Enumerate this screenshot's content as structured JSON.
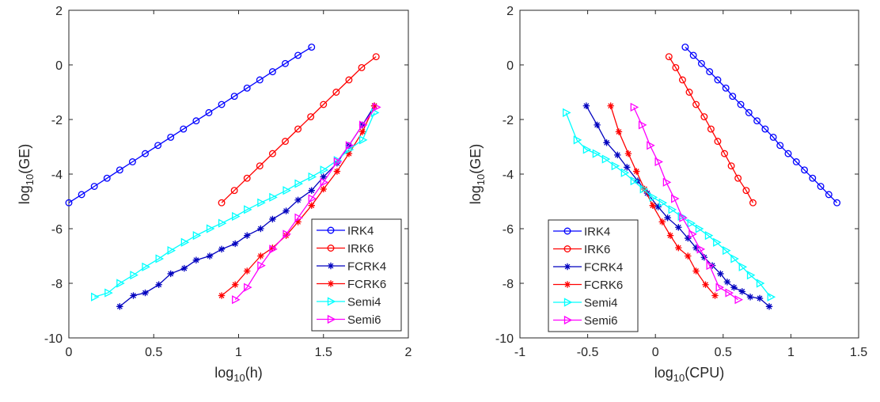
{
  "chart_data": [
    {
      "type": "line",
      "xlabel": "log10(h)",
      "ylabel": "log10(GE)",
      "xlim": [
        0,
        2
      ],
      "ylim": [
        -10,
        2
      ],
      "xticks": [
        0,
        0.5,
        1,
        1.5,
        2
      ],
      "xtick_labels": [
        "0",
        "0.5",
        "1",
        "1.5",
        "2"
      ],
      "yticks": [
        -10,
        -8,
        -6,
        -4,
        -2,
        0,
        2
      ],
      "ytick_labels": [
        "-10",
        "-8",
        "-6",
        "-4",
        "-2",
        "0",
        "2"
      ],
      "grid": false,
      "legend_position": "lower-right",
      "series": [
        {
          "name": "IRK4",
          "color": "#0000ff",
          "marker": "circle",
          "x": [
            0.0,
            0.075,
            0.15,
            0.225,
            0.3,
            0.375,
            0.45,
            0.525,
            0.6,
            0.675,
            0.75,
            0.825,
            0.9,
            0.975,
            1.05,
            1.125,
            1.2,
            1.275,
            1.35,
            1.43
          ],
          "y": [
            -5.05,
            -4.75,
            -4.45,
            -4.15,
            -3.85,
            -3.55,
            -3.25,
            -2.95,
            -2.65,
            -2.35,
            -2.05,
            -1.75,
            -1.45,
            -1.15,
            -0.85,
            -0.55,
            -0.25,
            0.05,
            0.35,
            0.65
          ]
        },
        {
          "name": "IRK6",
          "color": "#ff0000",
          "marker": "circle",
          "x": [
            0.9,
            0.975,
            1.05,
            1.125,
            1.2,
            1.275,
            1.35,
            1.425,
            1.5,
            1.575,
            1.65,
            1.725,
            1.81
          ],
          "y": [
            -5.05,
            -4.6,
            -4.15,
            -3.7,
            -3.25,
            -2.8,
            -2.35,
            -1.9,
            -1.45,
            -1.0,
            -0.55,
            -0.1,
            0.3
          ]
        },
        {
          "name": "FCRK4",
          "color": "#0000bf",
          "marker": "star",
          "x": [
            0.3,
            0.38,
            0.45,
            0.53,
            0.6,
            0.68,
            0.75,
            0.83,
            0.9,
            0.98,
            1.05,
            1.13,
            1.2,
            1.28,
            1.35,
            1.43,
            1.5,
            1.58,
            1.65,
            1.73,
            1.8
          ],
          "y": [
            -8.85,
            -8.45,
            -8.35,
            -8.05,
            -7.65,
            -7.45,
            -7.15,
            -7.0,
            -6.75,
            -6.55,
            -6.25,
            -6.0,
            -5.65,
            -5.35,
            -4.95,
            -4.6,
            -4.1,
            -3.6,
            -2.95,
            -2.2,
            -1.5
          ]
        },
        {
          "name": "FCRK6",
          "color": "#ff0000",
          "marker": "star",
          "x": [
            0.9,
            0.98,
            1.05,
            1.13,
            1.2,
            1.28,
            1.35,
            1.43,
            1.5,
            1.58,
            1.65,
            1.73,
            1.8
          ],
          "y": [
            -8.45,
            -8.05,
            -7.55,
            -7.0,
            -6.7,
            -6.25,
            -5.75,
            -5.15,
            -4.55,
            -3.9,
            -3.25,
            -2.45,
            -1.5
          ]
        },
        {
          "name": "Semi4",
          "color": "#00ffff",
          "marker": "triangle-right",
          "x": [
            0.15,
            0.23,
            0.3,
            0.38,
            0.45,
            0.53,
            0.6,
            0.68,
            0.75,
            0.83,
            0.9,
            0.98,
            1.05,
            1.13,
            1.2,
            1.28,
            1.35,
            1.43,
            1.5,
            1.58,
            1.65,
            1.73,
            1.8
          ],
          "y": [
            -8.5,
            -8.35,
            -8.0,
            -7.7,
            -7.4,
            -7.1,
            -6.8,
            -6.5,
            -6.25,
            -6.0,
            -5.8,
            -5.55,
            -5.3,
            -5.05,
            -4.85,
            -4.6,
            -4.35,
            -4.1,
            -3.85,
            -3.5,
            -3.1,
            -2.75,
            -1.75
          ]
        },
        {
          "name": "Semi6",
          "color": "#ff00ff",
          "marker": "triangle-right",
          "x": [
            0.98,
            1.05,
            1.13,
            1.2,
            1.28,
            1.35,
            1.43,
            1.5,
            1.58,
            1.65,
            1.73,
            1.81
          ],
          "y": [
            -8.6,
            -8.15,
            -7.35,
            -6.75,
            -6.2,
            -5.6,
            -4.9,
            -4.3,
            -3.55,
            -2.95,
            -2.2,
            -1.55
          ]
        }
      ]
    },
    {
      "type": "line",
      "xlabel": "log10(CPU)",
      "ylabel": "log10(GE)",
      "xlim": [
        -1,
        1.5
      ],
      "ylim": [
        -10,
        2
      ],
      "xticks": [
        -1,
        -0.5,
        0,
        0.5,
        1,
        1.5
      ],
      "xtick_labels": [
        "-1",
        "-0.5",
        "0",
        "0.5",
        "1",
        "1.5"
      ],
      "yticks": [
        -10,
        -8,
        -6,
        -4,
        -2,
        0,
        2
      ],
      "ytick_labels": [
        "-10",
        "-8",
        "-6",
        "-4",
        "-2",
        "0",
        "2"
      ],
      "grid": false,
      "legend_position": "lower-left",
      "series": [
        {
          "name": "IRK4",
          "color": "#0000ff",
          "marker": "circle",
          "x": [
            0.22,
            0.28,
            0.34,
            0.4,
            0.46,
            0.52,
            0.57,
            0.63,
            0.69,
            0.75,
            0.81,
            0.87,
            0.92,
            0.98,
            1.04,
            1.1,
            1.16,
            1.22,
            1.28,
            1.34
          ],
          "y": [
            0.65,
            0.35,
            0.05,
            -0.25,
            -0.55,
            -0.85,
            -1.15,
            -1.45,
            -1.75,
            -2.05,
            -2.35,
            -2.65,
            -2.95,
            -3.25,
            -3.55,
            -3.85,
            -4.15,
            -4.45,
            -4.75,
            -5.05
          ]
        },
        {
          "name": "IRK6",
          "color": "#ff0000",
          "marker": "circle",
          "x": [
            0.1,
            0.15,
            0.2,
            0.25,
            0.3,
            0.36,
            0.41,
            0.46,
            0.51,
            0.56,
            0.61,
            0.67,
            0.72
          ],
          "y": [
            0.3,
            -0.1,
            -0.55,
            -1.0,
            -1.45,
            -1.9,
            -2.35,
            -2.8,
            -3.25,
            -3.7,
            -4.15,
            -4.6,
            -5.05
          ]
        },
        {
          "name": "FCRK4",
          "color": "#0000bf",
          "marker": "star",
          "x": [
            -0.51,
            -0.43,
            -0.36,
            -0.28,
            -0.21,
            -0.13,
            -0.06,
            0.02,
            0.09,
            0.17,
            0.24,
            0.3,
            0.36,
            0.42,
            0.48,
            0.53,
            0.58,
            0.64,
            0.7,
            0.77,
            0.84
          ],
          "y": [
            -1.5,
            -2.2,
            -2.85,
            -3.3,
            -3.75,
            -4.25,
            -4.7,
            -5.2,
            -5.6,
            -5.95,
            -6.35,
            -6.7,
            -7.05,
            -7.35,
            -7.65,
            -7.95,
            -8.15,
            -8.3,
            -8.5,
            -8.55,
            -8.85
          ]
        },
        {
          "name": "FCRK6",
          "color": "#ff0000",
          "marker": "star",
          "x": [
            -0.33,
            -0.27,
            -0.2,
            -0.14,
            -0.08,
            -0.02,
            0.05,
            0.11,
            0.17,
            0.24,
            0.3,
            0.37,
            0.44
          ],
          "y": [
            -1.5,
            -2.45,
            -3.25,
            -3.9,
            -4.55,
            -5.15,
            -5.75,
            -6.25,
            -6.7,
            -7.0,
            -7.55,
            -8.05,
            -8.45
          ]
        },
        {
          "name": "Semi4",
          "color": "#00ffff",
          "marker": "triangle-right",
          "x": [
            -0.66,
            -0.58,
            -0.51,
            -0.44,
            -0.37,
            -0.3,
            -0.23,
            -0.16,
            -0.09,
            -0.02,
            0.05,
            0.12,
            0.19,
            0.26,
            0.32,
            0.39,
            0.45,
            0.52,
            0.58,
            0.64,
            0.7,
            0.77,
            0.85
          ],
          "y": [
            -1.75,
            -2.75,
            -3.1,
            -3.25,
            -3.45,
            -3.7,
            -3.95,
            -4.25,
            -4.55,
            -4.85,
            -5.05,
            -5.3,
            -5.55,
            -5.8,
            -6.0,
            -6.25,
            -6.5,
            -6.8,
            -7.1,
            -7.4,
            -7.7,
            -8.0,
            -8.5
          ]
        },
        {
          "name": "Semi6",
          "color": "#ff00ff",
          "marker": "triangle-right",
          "x": [
            -0.16,
            -0.1,
            -0.04,
            0.02,
            0.08,
            0.14,
            0.2,
            0.27,
            0.33,
            0.4,
            0.47,
            0.54,
            0.61
          ],
          "y": [
            -1.55,
            -2.2,
            -2.95,
            -3.55,
            -4.3,
            -4.9,
            -5.6,
            -6.2,
            -6.75,
            -7.35,
            -8.15,
            -8.35,
            -8.6
          ]
        }
      ]
    }
  ]
}
